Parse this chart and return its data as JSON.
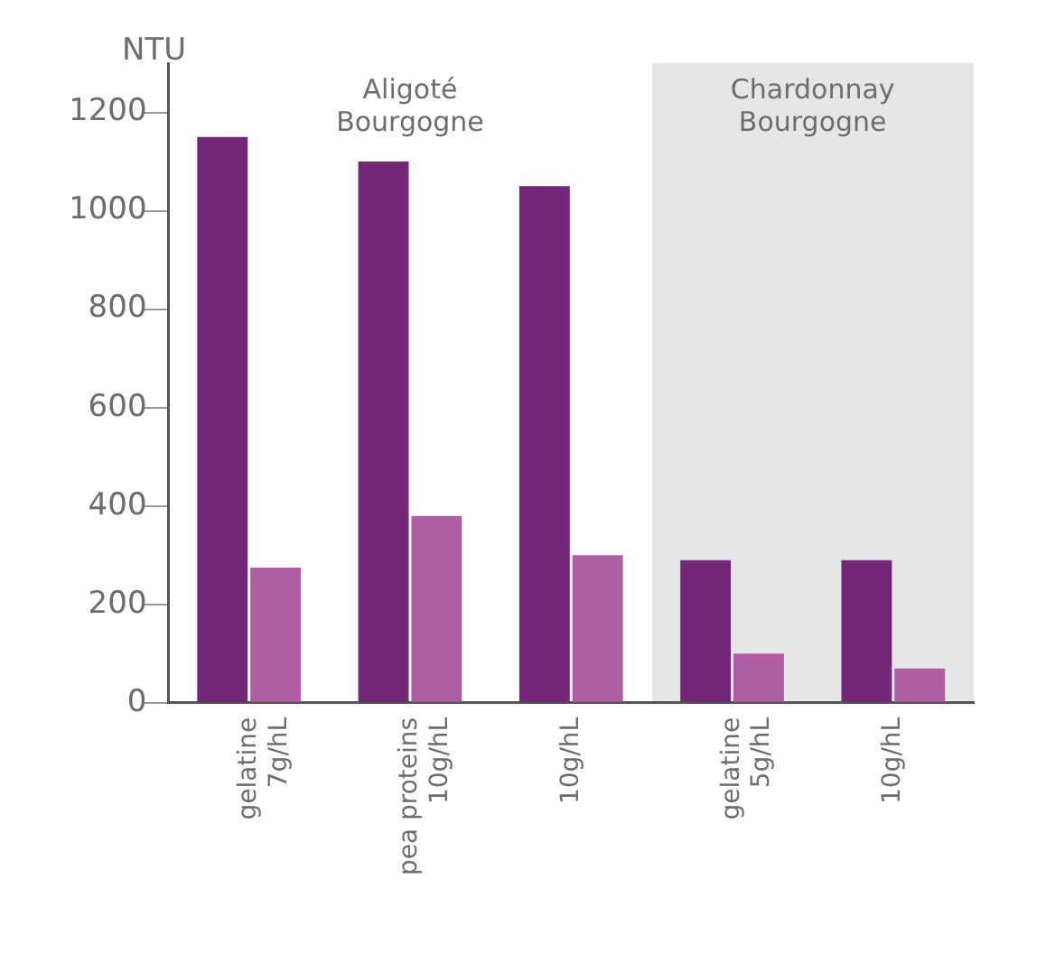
{
  "chart_data": {
    "type": "bar",
    "ylabel": "NTU",
    "categories": [
      "gelatine\n7g/hL",
      "pea proteins\n10g/hL",
      "10g/hL",
      "gelatine\n5g/hL",
      "10g/hL"
    ],
    "series": [
      {
        "color": "#722779",
        "values": [
          1150,
          1100,
          1050,
          290,
          290
        ]
      },
      {
        "color": "#b05ea3",
        "values": [
          275,
          380,
          300,
          100,
          70
        ]
      }
    ],
    "ylim": [
      0,
      1300
    ],
    "yticks": [
      0,
      200,
      400,
      600,
      800,
      1000,
      1200
    ],
    "annotations": [
      "Aligoté\nBourgogne",
      "Chardonnay\nBourgogne"
    ],
    "grid": false,
    "legend": false
  }
}
